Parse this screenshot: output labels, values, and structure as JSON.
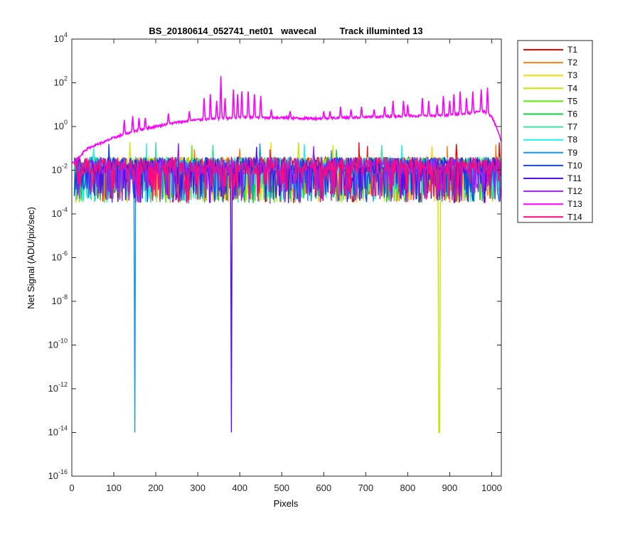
{
  "chart_data": {
    "type": "line",
    "title": "BS_20180614_052741_net01   wavecal         Track illuminted 13",
    "xlabel": "Pixels",
    "ylabel": "Net Signal (ADU/pix/sec)",
    "xlim": [
      0,
      1023
    ],
    "ylim": [
      1e-16,
      10000.0
    ],
    "yscale": "log",
    "grid": false,
    "legend_position": "outside-right",
    "x_ticks": [
      0,
      100,
      200,
      300,
      400,
      500,
      600,
      700,
      800,
      900,
      1000
    ],
    "y_ticks": [
      {
        "base": "10",
        "exp": "-16",
        "value": 1e-16
      },
      {
        "base": "10",
        "exp": "-14",
        "value": 1e-14
      },
      {
        "base": "10",
        "exp": "-12",
        "value": 1e-12
      },
      {
        "base": "10",
        "exp": "-10",
        "value": 1e-10
      },
      {
        "base": "10",
        "exp": "-8",
        "value": 1e-08
      },
      {
        "base": "10",
        "exp": "-6",
        "value": 1e-06
      },
      {
        "base": "10",
        "exp": "-4",
        "value": 0.0001
      },
      {
        "base": "10",
        "exp": "-2",
        "value": 0.01
      },
      {
        "base": "10",
        "exp": "0",
        "value": 1
      },
      {
        "base": "10",
        "exp": "2",
        "value": 100
      },
      {
        "base": "10",
        "exp": "4",
        "value": 10000
      }
    ],
    "illuminated_track": {
      "name": "T13",
      "color": "#ff00ff",
      "x": [
        0,
        20,
        30,
        40,
        60,
        80,
        90,
        100,
        120,
        150,
        200,
        250,
        300,
        350,
        400,
        450,
        500,
        550,
        600,
        650,
        700,
        750,
        800,
        850,
        900,
        950,
        980,
        1000,
        1010,
        1015,
        1023
      ],
      "y": [
        0.02,
        0.04,
        0.08,
        0.1,
        0.15,
        0.2,
        0.25,
        0.3,
        0.4,
        0.6,
        1.0,
        1.5,
        2.0,
        2.2,
        2.5,
        2.5,
        2.5,
        2.3,
        2.3,
        2.5,
        2.6,
        2.8,
        3.0,
        3.0,
        3.2,
        4.0,
        5.0,
        3.0,
        1.0,
        0.6,
        0.2
      ],
      "peaks": [
        {
          "x": 125,
          "y": 2
        },
        {
          "x": 145,
          "y": 3
        },
        {
          "x": 160,
          "y": 2.5
        },
        {
          "x": 175,
          "y": 2.5
        },
        {
          "x": 230,
          "y": 4
        },
        {
          "x": 280,
          "y": 5
        },
        {
          "x": 315,
          "y": 20
        },
        {
          "x": 330,
          "y": 30
        },
        {
          "x": 345,
          "y": 15
        },
        {
          "x": 355,
          "y": 200
        },
        {
          "x": 365,
          "y": 20
        },
        {
          "x": 385,
          "y": 50
        },
        {
          "x": 395,
          "y": 30
        },
        {
          "x": 405,
          "y": 40
        },
        {
          "x": 420,
          "y": 40
        },
        {
          "x": 435,
          "y": 30
        },
        {
          "x": 450,
          "y": 25
        },
        {
          "x": 475,
          "y": 6
        },
        {
          "x": 520,
          "y": 5
        },
        {
          "x": 600,
          "y": 5
        },
        {
          "x": 615,
          "y": 5
        },
        {
          "x": 640,
          "y": 8
        },
        {
          "x": 665,
          "y": 6
        },
        {
          "x": 690,
          "y": 8
        },
        {
          "x": 720,
          "y": 6
        },
        {
          "x": 745,
          "y": 8
        },
        {
          "x": 765,
          "y": 15
        },
        {
          "x": 790,
          "y": 15
        },
        {
          "x": 800,
          "y": 10
        },
        {
          "x": 835,
          "y": 20
        },
        {
          "x": 850,
          "y": 15
        },
        {
          "x": 870,
          "y": 10
        },
        {
          "x": 885,
          "y": 25
        },
        {
          "x": 900,
          "y": 15
        },
        {
          "x": 910,
          "y": 30
        },
        {
          "x": 925,
          "y": 40
        },
        {
          "x": 940,
          "y": 20
        },
        {
          "x": 955,
          "y": 40
        },
        {
          "x": 975,
          "y": 50
        },
        {
          "x": 990,
          "y": 60
        }
      ]
    },
    "noise_band": {
      "median": 0.02,
      "upper": 0.04,
      "lower": 0.0003
    },
    "deep_dips": [
      {
        "series": "T9",
        "x": 150,
        "y": 1e-14
      },
      {
        "series": "T11",
        "x": 380,
        "y": 1e-14
      },
      {
        "series": "T4",
        "x": 875,
        "y": 1e-14
      }
    ],
    "series": [
      {
        "name": "T1",
        "color": "#ff0000"
      },
      {
        "name": "T2",
        "color": "#ff7f0e"
      },
      {
        "name": "T3",
        "color": "#ffd700"
      },
      {
        "name": "T4",
        "color": "#c8e600"
      },
      {
        "name": "T5",
        "color": "#55f000"
      },
      {
        "name": "T6",
        "color": "#10d040"
      },
      {
        "name": "T7",
        "color": "#40e0a0"
      },
      {
        "name": "T8",
        "color": "#20f0f0"
      },
      {
        "name": "T9",
        "color": "#1496e6"
      },
      {
        "name": "T10",
        "color": "#1448dc"
      },
      {
        "name": "T11",
        "color": "#5010e6"
      },
      {
        "name": "T12",
        "color": "#a020f0"
      },
      {
        "name": "T13",
        "color": "#ff00ff"
      },
      {
        "name": "T14",
        "color": "#ff0a78"
      }
    ]
  }
}
